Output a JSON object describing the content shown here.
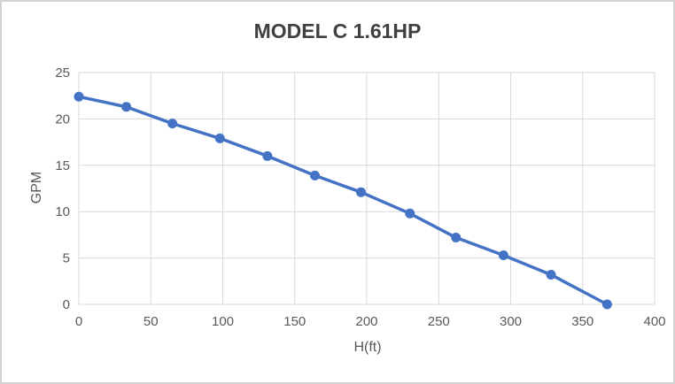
{
  "window": {
    "background": "#ffffff",
    "border_color": "#d2d2d2"
  },
  "chart_data": {
    "type": "line",
    "title": "MODEL C 1.61HP",
    "xlabel": "H(ft)",
    "ylabel": "GPM",
    "x": [
      0,
      33,
      65,
      98,
      131,
      164,
      196,
      230,
      262,
      295,
      328,
      367
    ],
    "y": [
      22.4,
      21.3,
      19.5,
      17.9,
      16.0,
      13.9,
      12.1,
      9.8,
      7.2,
      5.3,
      3.2,
      0
    ],
    "xlim": [
      0,
      400
    ],
    "ylim": [
      0,
      25
    ],
    "x_ticks": [
      0,
      50,
      100,
      150,
      200,
      250,
      300,
      350,
      400
    ],
    "y_ticks": [
      0,
      5,
      10,
      15,
      20,
      25
    ],
    "grid": true,
    "legend": false,
    "marker": "circle",
    "colors": {
      "line": "#4472C4",
      "marker": "#4472C4",
      "grid": "#D9D9D9",
      "tick_text": "#595959",
      "axis_title_text": "#595959",
      "title_text": "#404040"
    }
  }
}
